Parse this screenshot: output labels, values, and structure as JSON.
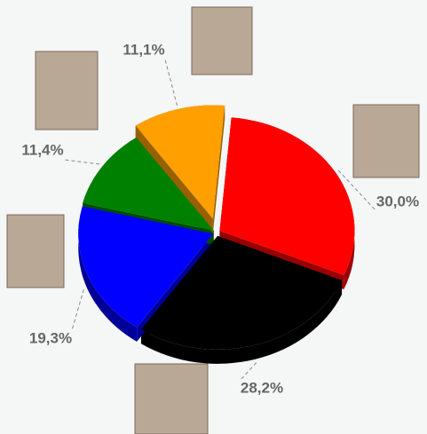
{
  "chart_data": {
    "type": "pie",
    "values": [
      30.0,
      28.2,
      19.3,
      11.4,
      11.1
    ],
    "value_labels": [
      "30,0%",
      "28,2%",
      "19,3%",
      "11,4%",
      "11,1%"
    ],
    "colors": [
      "#ff0000",
      "#000000",
      "#0000ff",
      "#008000",
      "#ffa000"
    ]
  }
}
